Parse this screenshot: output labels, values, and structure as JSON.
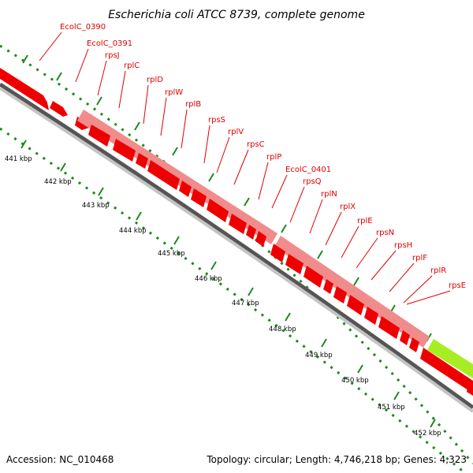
{
  "title": "Escherichia coli ATCC 8739, complete genome",
  "footer": {
    "accession": "Accession: NC_010468",
    "summary": "Topology: circular; Length: 4,746,218 bp; Genes: 4,323"
  },
  "colors": {
    "gene": "#ee0000",
    "rrna_block": "#f08c8c",
    "highlight": "#a6ee22",
    "backbone_dark": "#555555",
    "backbone_light": "#bbbbbb",
    "tick": "#1a8a1a",
    "label": "#e00000"
  },
  "scale_labels": [
    "441 kbp",
    "442 kbp",
    "443 kbp",
    "444 kbp",
    "445 kbp",
    "446 kbp",
    "447 kbp",
    "448 kbp",
    "449 kbp",
    "450 kbp",
    "451 kbp",
    "452 kbp"
  ],
  "gene_labels": [
    "EcolC_0390",
    "EcolC_0391",
    "rpsJ",
    "rplC",
    "rplD",
    "rplW",
    "rplB",
    "rpsS",
    "rplV",
    "rpsC",
    "rplP",
    "EcolC_0401",
    "rpsQ",
    "rplN",
    "rplX",
    "rplE",
    "rpsN",
    "rpsH",
    "rplF",
    "rplR",
    "rpsE"
  ]
}
